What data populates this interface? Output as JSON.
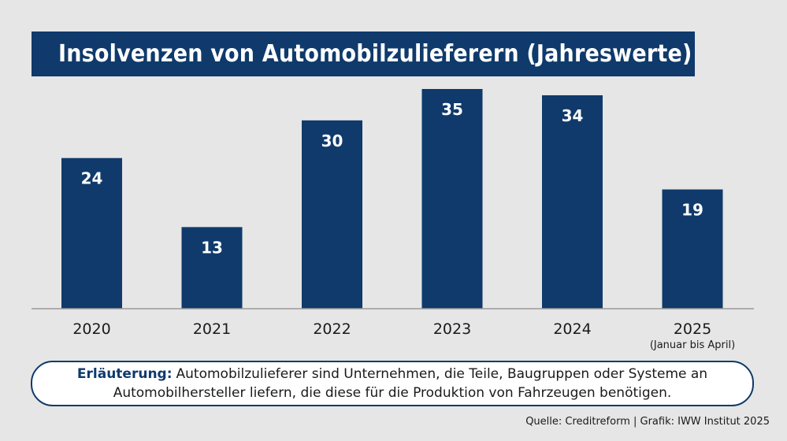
{
  "title": "Insolvenzen von Automobilzulieferern (Jahreswerte)",
  "chart_data": {
    "type": "bar",
    "categories": [
      "2020",
      "2021",
      "2022",
      "2023",
      "2024",
      "2025"
    ],
    "category_sublabels": [
      "",
      "",
      "",
      "",
      "",
      "(Januar bis April)"
    ],
    "values": [
      24,
      13,
      30,
      35,
      34,
      19
    ],
    "ylim": [
      0,
      35
    ],
    "grid": false,
    "bar_color": "#0f3a6b",
    "value_label_color": "#ffffff"
  },
  "note": {
    "label": "Erläuterung:",
    "text": "Automobilzulieferer sind Unternehmen, die Teile, Baugruppen oder Systeme an Automobilhersteller liefern, die diese für die Produktion von Fahrzeugen benötigen."
  },
  "source": "Quelle: Creditreform | Grafik: IWW Institut 2025"
}
